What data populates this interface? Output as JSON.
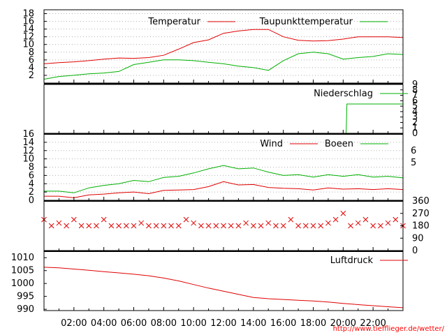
{
  "credit_url": "http://www.tiefflieger.de/wetter/",
  "colors": {
    "red": "#e00000",
    "green": "#00b000",
    "frame": "#000000",
    "grid": "#b0b0b0"
  },
  "time_labels": [
    "02:00",
    "04:00",
    "06:00",
    "08:00",
    "10:00",
    "12:00",
    "14:00",
    "16:00",
    "18:00",
    "20:00",
    "22:00"
  ],
  "chart_data": [
    {
      "type": "line",
      "x_unit": "hour",
      "xlim": [
        0,
        24
      ],
      "ylim": [
        0,
        19
      ],
      "yticks": [
        2,
        4,
        6,
        8,
        10,
        12,
        14,
        16,
        18
      ],
      "series": [
        {
          "name": "Temperatur",
          "color": "#e00000",
          "x": [
            0,
            1,
            2,
            3,
            4,
            5,
            6,
            7,
            8,
            9,
            10,
            11,
            12,
            13,
            14,
            15,
            16,
            17,
            18,
            19,
            20,
            21,
            22,
            23,
            24
          ],
          "y": [
            5.0,
            5.3,
            5.5,
            5.8,
            6.2,
            6.5,
            6.4,
            6.6,
            7.2,
            8.8,
            10.5,
            11.2,
            12.9,
            13.5,
            13.9,
            13.9,
            12.0,
            11.1,
            10.9,
            11.0,
            11.4,
            12.0,
            12.0,
            12.0,
            11.8
          ]
        },
        {
          "name": "Taupunkttemperatur",
          "color": "#00b000",
          "x": [
            0,
            1,
            2,
            3,
            4,
            5,
            6,
            7,
            8,
            9,
            10,
            11,
            12,
            13,
            14,
            15,
            16,
            17,
            18,
            19,
            20,
            21,
            22,
            23,
            24
          ],
          "y": [
            1.0,
            1.7,
            2.0,
            2.4,
            2.6,
            3.0,
            4.8,
            5.4,
            6.0,
            6.0,
            5.8,
            5.4,
            5.0,
            4.4,
            4.0,
            3.3,
            5.8,
            7.6,
            8.0,
            7.6,
            6.2,
            6.6,
            6.9,
            7.6,
            7.4
          ]
        }
      ]
    },
    {
      "type": "line",
      "x_unit": "hour",
      "xlim": [
        0,
        24
      ],
      "ylim": [
        0,
        9
      ],
      "yticks": [
        0,
        1,
        2,
        3,
        4,
        5,
        6,
        7,
        8,
        9
      ],
      "series": [
        {
          "name": "Niederschlag",
          "color": "#00b000",
          "x": [
            0,
            20.2,
            20.25,
            24
          ],
          "y": [
            0,
            0,
            5.4,
            5.4
          ]
        }
      ]
    },
    {
      "type": "line",
      "x_unit": "hour",
      "xlim": [
        0,
        24
      ],
      "ylim": [
        0,
        16
      ],
      "yticks": [
        0,
        2,
        4,
        6,
        8,
        10,
        12,
        14,
        16
      ],
      "right_ticks": [
        "5",
        "6"
      ],
      "series": [
        {
          "name": "Wind",
          "color": "#e00000",
          "x": [
            0,
            1,
            2,
            3,
            4,
            5,
            6,
            7,
            8,
            9,
            10,
            11,
            12,
            13,
            14,
            15,
            16,
            17,
            18,
            19,
            20,
            21,
            22,
            23,
            24
          ],
          "y": [
            1.0,
            1.0,
            0.6,
            1.3,
            1.5,
            1.8,
            2.0,
            1.6,
            2.4,
            2.5,
            2.6,
            3.3,
            4.5,
            3.7,
            3.8,
            3.1,
            2.9,
            2.8,
            2.5,
            3.0,
            2.7,
            2.8,
            2.6,
            2.8,
            2.6
          ]
        },
        {
          "name": "Boeen",
          "color": "#00b000",
          "x": [
            0,
            1,
            2,
            3,
            4,
            5,
            6,
            7,
            8,
            9,
            10,
            11,
            12,
            13,
            14,
            15,
            16,
            17,
            18,
            19,
            20,
            21,
            22,
            23,
            24
          ],
          "y": [
            2.2,
            2.2,
            1.8,
            3.0,
            3.6,
            4.0,
            4.8,
            4.5,
            5.5,
            5.8,
            6.6,
            7.6,
            8.4,
            7.6,
            7.8,
            6.8,
            6.0,
            6.2,
            5.6,
            6.2,
            5.8,
            6.2,
            5.6,
            5.8,
            5.4
          ]
        }
      ]
    },
    {
      "type": "scatter",
      "x_unit": "hour",
      "xlim": [
        0,
        24
      ],
      "ylim": [
        0,
        360
      ],
      "yticks": [
        0,
        90,
        180,
        270,
        360
      ],
      "series": [
        {
          "name": "",
          "color": "#e00000",
          "marker": "x",
          "x": [
            0,
            0.5,
            1,
            1.5,
            2,
            2.5,
            3,
            3.5,
            4,
            4.5,
            5,
            5.5,
            6,
            6.5,
            7,
            7.5,
            8,
            8.5,
            9,
            9.5,
            10,
            10.5,
            11,
            11.5,
            12,
            12.5,
            13,
            13.5,
            14,
            14.5,
            15,
            15.5,
            16,
            16.5,
            17,
            17.5,
            18,
            18.5,
            19,
            19.5,
            20,
            20.5,
            21,
            21.5,
            22,
            22.5,
            23,
            23.5,
            24
          ],
          "y": [
            225,
            180,
            200,
            180,
            225,
            180,
            180,
            180,
            225,
            180,
            180,
            180,
            180,
            200,
            180,
            180,
            180,
            180,
            180,
            225,
            200,
            180,
            180,
            180,
            180,
            180,
            180,
            200,
            180,
            180,
            200,
            180,
            180,
            225,
            180,
            180,
            180,
            180,
            200,
            225,
            270,
            180,
            200,
            225,
            180,
            180,
            200,
            225,
            180
          ]
        }
      ]
    },
    {
      "type": "line",
      "x_unit": "hour",
      "xlim": [
        0,
        24
      ],
      "ylim": [
        989.5,
        1012.5
      ],
      "yticks": [
        990,
        995,
        1000,
        1005,
        1010
      ],
      "series": [
        {
          "name": "Luftdruck",
          "color": "#e00000",
          "x": [
            0,
            1,
            2,
            3,
            4,
            5,
            6,
            7,
            8,
            9,
            10,
            11,
            12,
            13,
            14,
            15,
            16,
            17,
            18,
            19,
            20,
            21,
            22,
            23,
            24
          ],
          "y": [
            1006.3,
            1006.1,
            1005.6,
            1005.1,
            1004.6,
            1004.1,
            1003.6,
            1003.0,
            1002.1,
            1001.0,
            999.6,
            998.2,
            997.0,
            995.8,
            994.6,
            994.1,
            993.8,
            993.5,
            993.2,
            992.8,
            992.3,
            991.8,
            991.4,
            991.0,
            990.6
          ]
        }
      ]
    }
  ]
}
